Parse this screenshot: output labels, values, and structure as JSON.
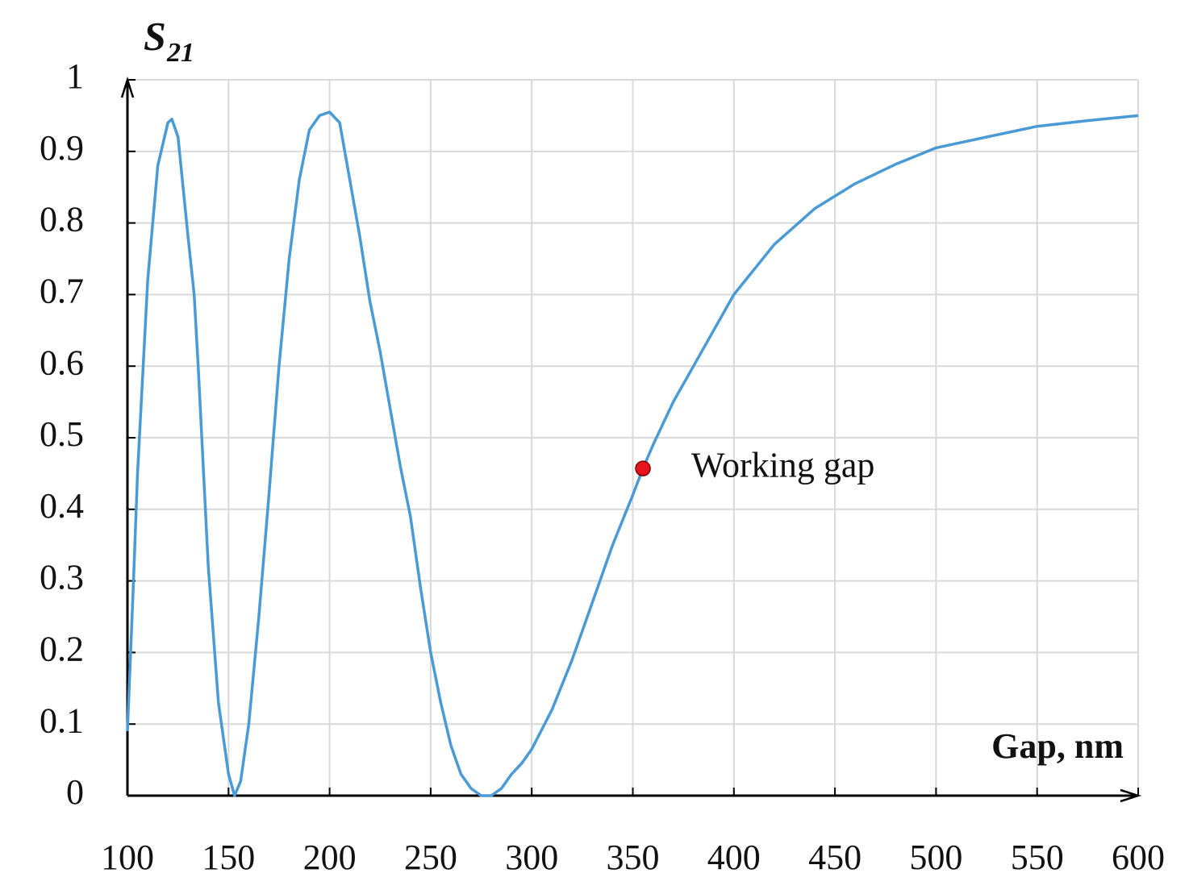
{
  "chart_data": {
    "type": "line",
    "y_label_symbol": "S",
    "y_label_subscript": "21",
    "x_label": "Gap, nm",
    "grid": true,
    "xlim": [
      100,
      600
    ],
    "xticks": [
      100,
      150,
      200,
      250,
      300,
      350,
      400,
      450,
      500,
      550,
      600
    ],
    "ylim": [
      0,
      1
    ],
    "yticks": [
      0,
      0.1,
      0.2,
      0.3,
      0.4,
      0.5,
      0.6,
      0.7,
      0.8,
      0.9,
      1
    ],
    "x": [
      100,
      103,
      105,
      110,
      115,
      120,
      122,
      125,
      130,
      133,
      135,
      140,
      145,
      150,
      153,
      156,
      160,
      165,
      170,
      175,
      180,
      185,
      190,
      195,
      200,
      205,
      210,
      215,
      220,
      225,
      230,
      235,
      240,
      245,
      250,
      255,
      260,
      265,
      270,
      275,
      280,
      285,
      290,
      295,
      300,
      310,
      320,
      330,
      340,
      350,
      355,
      360,
      370,
      380,
      390,
      400,
      420,
      440,
      460,
      480,
      500,
      525,
      550,
      575,
      600
    ],
    "series": [
      {
        "color": "#4a9ad6",
        "values": [
          0.09,
          0.3,
          0.45,
          0.72,
          0.88,
          0.94,
          0.945,
          0.92,
          0.78,
          0.7,
          0.6,
          0.32,
          0.13,
          0.03,
          0,
          0.02,
          0.1,
          0.25,
          0.42,
          0.6,
          0.75,
          0.86,
          0.93,
          0.95,
          0.955,
          0.94,
          0.86,
          0.78,
          0.69,
          0.62,
          0.54,
          0.46,
          0.39,
          0.29,
          0.2,
          0.13,
          0.07,
          0.03,
          0.01,
          0,
          0,
          0.01,
          0.03,
          0.045,
          0.065,
          0.12,
          0.19,
          0.27,
          0.35,
          0.42,
          0.457,
          0.49,
          0.55,
          0.6,
          0.65,
          0.7,
          0.77,
          0.82,
          0.855,
          0.882,
          0.905,
          0.92,
          0.935,
          0.943,
          0.95
        ]
      }
    ],
    "annotations": [
      {
        "x": 355,
        "y": 0.457,
        "text": "Working gap",
        "color": "#e8141b"
      }
    ]
  }
}
